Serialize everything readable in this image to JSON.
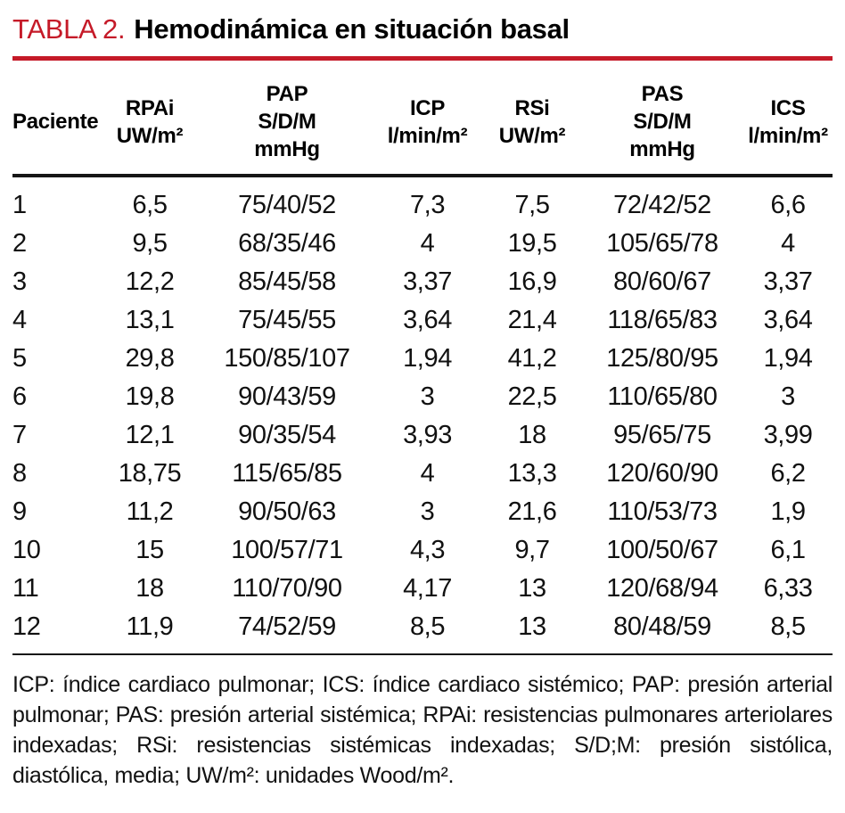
{
  "title": {
    "label": "TABLA 2.",
    "text": "Hemodinámica en situación basal"
  },
  "colors": {
    "accent_red": "#c51a28",
    "rule_black": "#161616",
    "text": "#111111"
  },
  "table": {
    "columns": [
      {
        "id": "paciente",
        "align": "left",
        "lines": [
          "Paciente"
        ]
      },
      {
        "id": "rpai",
        "align": "center",
        "lines": [
          "RPAi",
          "UW/m²"
        ]
      },
      {
        "id": "pap",
        "align": "center",
        "lines": [
          "PAP",
          "S/D/M",
          "mmHg"
        ]
      },
      {
        "id": "icp",
        "align": "center",
        "lines": [
          "ICP",
          "l/min/m²"
        ]
      },
      {
        "id": "rsi",
        "align": "center",
        "lines": [
          "RSi",
          "UW/m²"
        ]
      },
      {
        "id": "pas",
        "align": "center",
        "lines": [
          "PAS",
          "S/D/M",
          "mmHg"
        ]
      },
      {
        "id": "ics",
        "align": "center",
        "lines": [
          "ICS",
          "l/min/m²"
        ]
      }
    ],
    "rows": [
      [
        "1",
        "6,5",
        "75/40/52",
        "7,3",
        "7,5",
        "72/42/52",
        "6,6"
      ],
      [
        "2",
        "9,5",
        "68/35/46",
        "4",
        "19,5",
        "105/65/78",
        "4"
      ],
      [
        "3",
        "12,2",
        "85/45/58",
        "3,37",
        "16,9",
        "80/60/67",
        "3,37"
      ],
      [
        "4",
        "13,1",
        "75/45/55",
        "3,64",
        "21,4",
        "118/65/83",
        "3,64"
      ],
      [
        "5",
        "29,8",
        "150/85/107",
        "1,94",
        "41,2",
        "125/80/95",
        "1,94"
      ],
      [
        "6",
        "19,8",
        "90/43/59",
        "3",
        "22,5",
        "110/65/80",
        "3"
      ],
      [
        "7",
        "12,1",
        "90/35/54",
        "3,93",
        "18",
        "95/65/75",
        "3,99"
      ],
      [
        "8",
        "18,75",
        "115/65/85",
        "4",
        "13,3",
        "120/60/90",
        "6,2"
      ],
      [
        "9",
        "11,2",
        "90/50/63",
        "3",
        "21,6",
        "110/53/73",
        "1,9"
      ],
      [
        "10",
        "15",
        "100/57/71",
        "4,3",
        "9,7",
        "100/50/67",
        "6,1"
      ],
      [
        "11",
        "18",
        "110/70/90",
        "4,17",
        "13",
        "120/68/94",
        "6,33"
      ],
      [
        "12",
        "11,9",
        "74/52/59",
        "8,5",
        "13",
        "80/48/59",
        "8,5"
      ]
    ]
  },
  "footnote": "ICP: índice cardiaco pulmonar; ICS: índice cardiaco sistémico; PAP: presión arterial pulmonar; PAS: presión arterial sistémica; RPAi: resistencias pulmonares arteriolares indexadas; RSi: resistencias sistémicas indexadas; S/D;M: presión sistólica, diastólica, media; UW/m²: unidades Wood/m²."
}
